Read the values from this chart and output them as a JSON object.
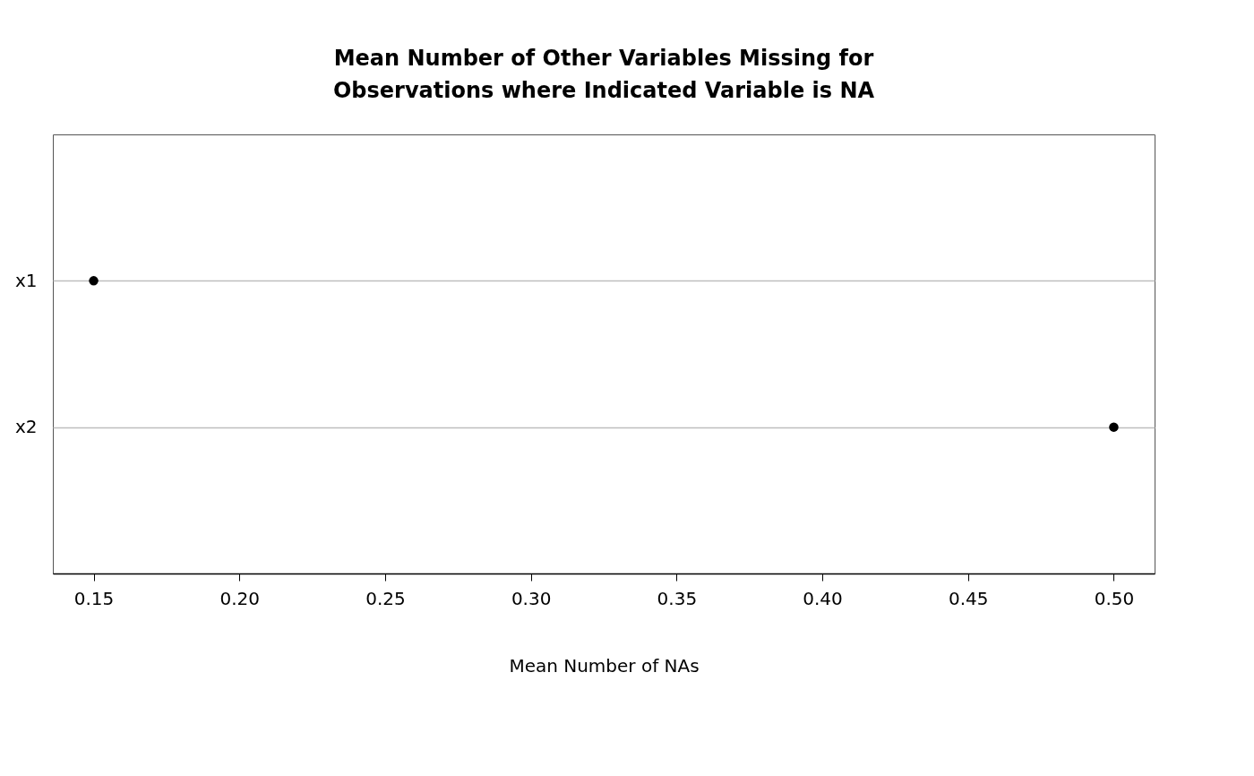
{
  "chart_data": {
    "type": "scatter",
    "orientation": "horizontal",
    "title": "Mean Number of Other Variables Missing for\nObservations where Indicated Variable is NA",
    "xlabel": "Mean Number of NAs",
    "categories": [
      "x1",
      "x2"
    ],
    "values": [
      0.15,
      0.5
    ],
    "color": "#000000",
    "marker": "circle",
    "xlim": [
      0.136,
      0.514
    ],
    "xticks": [
      {
        "value": 0.15,
        "label": "0.15"
      },
      {
        "value": 0.2,
        "label": "0.20"
      },
      {
        "value": 0.25,
        "label": "0.25"
      },
      {
        "value": 0.3,
        "label": "0.30"
      },
      {
        "value": 0.35,
        "label": "0.35"
      },
      {
        "value": 0.4,
        "label": "0.40"
      },
      {
        "value": 0.45,
        "label": "0.45"
      },
      {
        "value": 0.5,
        "label": "0.50"
      }
    ],
    "grid": "y"
  }
}
